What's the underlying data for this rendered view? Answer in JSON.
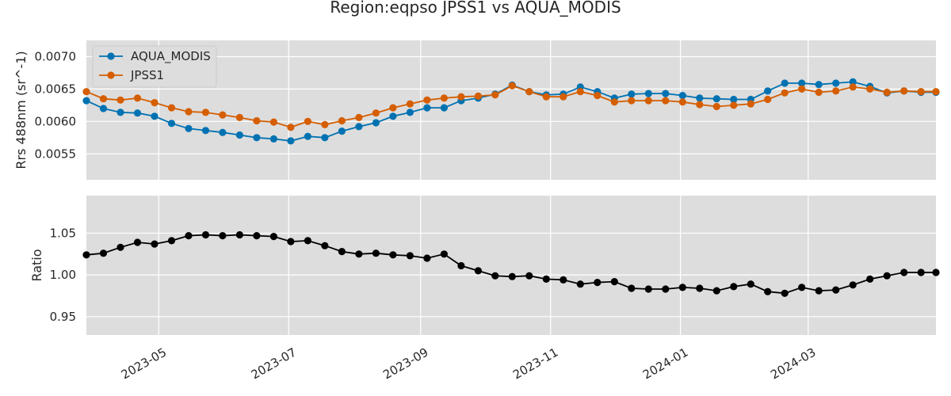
{
  "figure": {
    "title": "Region:eqpso JPSS1 vs AQUA_MODIS"
  },
  "colors": {
    "plot_background": "#dddddd",
    "grid": "#ffffff",
    "aqua_modis": "#0072b2",
    "jpss1": "#d55e00",
    "ratio": "#000000"
  },
  "chart_data": [
    {
      "type": "line",
      "title": "Region:eqpso JPSS1 vs AQUA_MODIS",
      "xlabel": "",
      "ylabel": "Rrs 488nm (sr^-1)",
      "x_type": "date",
      "xlim": [
        "2023-03-28",
        "2024-04-30"
      ],
      "ylim": [
        0.0051,
        0.00725
      ],
      "yticks": [
        0.0055,
        0.006,
        0.0065,
        0.007
      ],
      "ytick_labels": [
        "0.0055",
        "0.0060",
        "0.0065",
        "0.0070"
      ],
      "grid": true,
      "legend_position": "upper-left",
      "x": [
        "2023-03-28",
        "2023-04-05",
        "2023-04-13",
        "2023-04-21",
        "2023-04-29",
        "2023-05-07",
        "2023-05-15",
        "2023-05-23",
        "2023-05-31",
        "2023-06-08",
        "2023-06-16",
        "2023-06-24",
        "2023-07-02",
        "2023-07-10",
        "2023-07-18",
        "2023-07-26",
        "2023-08-03",
        "2023-08-11",
        "2023-08-19",
        "2023-08-27",
        "2023-09-04",
        "2023-09-12",
        "2023-09-20",
        "2023-09-28",
        "2023-10-06",
        "2023-10-14",
        "2023-10-22",
        "2023-10-30",
        "2023-11-07",
        "2023-11-15",
        "2023-11-23",
        "2023-12-01",
        "2023-12-09",
        "2023-12-17",
        "2023-12-25",
        "2024-01-02",
        "2024-01-10",
        "2024-01-18",
        "2024-01-26",
        "2024-02-03",
        "2024-02-11",
        "2024-02-19",
        "2024-02-27",
        "2024-03-06",
        "2024-03-14",
        "2024-03-22",
        "2024-03-30",
        "2024-04-07",
        "2024-04-15",
        "2024-04-23",
        "2024-04-30"
      ],
      "series": [
        {
          "name": "AQUA_MODIS",
          "color": "#0072b2",
          "values": [
            0.00632,
            0.0062,
            0.00614,
            0.00613,
            0.00608,
            0.00597,
            0.00589,
            0.00586,
            0.00583,
            0.00579,
            0.00575,
            0.00573,
            0.0057,
            0.00577,
            0.00575,
            0.00585,
            0.00592,
            0.00598,
            0.00608,
            0.00614,
            0.00621,
            0.00621,
            0.00632,
            0.00636,
            0.00642,
            0.00656,
            0.00646,
            0.00641,
            0.00642,
            0.00653,
            0.00646,
            0.00636,
            0.00642,
            0.00643,
            0.00643,
            0.0064,
            0.00636,
            0.00635,
            0.00634,
            0.00634,
            0.00647,
            0.00659,
            0.00659,
            0.00657,
            0.00659,
            0.00661,
            0.00654,
            0.00644,
            0.00647,
            0.00645,
            0.00645
          ]
        },
        {
          "name": "JPSS1",
          "color": "#d55e00",
          "values": [
            0.00646,
            0.00635,
            0.00633,
            0.00636,
            0.00629,
            0.00621,
            0.00615,
            0.00614,
            0.0061,
            0.00606,
            0.00601,
            0.00599,
            0.00591,
            0.006,
            0.00595,
            0.00601,
            0.00606,
            0.00613,
            0.00621,
            0.00627,
            0.00633,
            0.00636,
            0.00638,
            0.00639,
            0.00641,
            0.00655,
            0.00646,
            0.00638,
            0.00638,
            0.00646,
            0.0064,
            0.0063,
            0.00632,
            0.00632,
            0.00632,
            0.0063,
            0.00626,
            0.00623,
            0.00625,
            0.00627,
            0.00634,
            0.00644,
            0.0065,
            0.00645,
            0.00647,
            0.00653,
            0.0065,
            0.00645,
            0.00647,
            0.00646,
            0.00646
          ]
        }
      ]
    },
    {
      "type": "line",
      "xlabel": "",
      "ylabel": "Ratio",
      "x_type": "date",
      "xlim": [
        "2023-03-28",
        "2024-04-30"
      ],
      "ylim": [
        0.928,
        1.095
      ],
      "yticks": [
        0.95,
        1.0,
        1.05
      ],
      "ytick_labels": [
        "0.95",
        "1.00",
        "1.05"
      ],
      "xticks": [
        "2023-05-01",
        "2023-07-01",
        "2023-09-01",
        "2023-11-01",
        "2024-01-01",
        "2024-03-01"
      ],
      "xtick_labels": [
        "2023-05",
        "2023-07",
        "2023-09",
        "2023-11",
        "2024-01",
        "2024-03"
      ],
      "grid": true,
      "x": [
        "2023-03-28",
        "2023-04-05",
        "2023-04-13",
        "2023-04-21",
        "2023-04-29",
        "2023-05-07",
        "2023-05-15",
        "2023-05-23",
        "2023-05-31",
        "2023-06-08",
        "2023-06-16",
        "2023-06-24",
        "2023-07-02",
        "2023-07-10",
        "2023-07-18",
        "2023-07-26",
        "2023-08-03",
        "2023-08-11",
        "2023-08-19",
        "2023-08-27",
        "2023-09-04",
        "2023-09-12",
        "2023-09-20",
        "2023-09-28",
        "2023-10-06",
        "2023-10-14",
        "2023-10-22",
        "2023-10-30",
        "2023-11-07",
        "2023-11-15",
        "2023-11-23",
        "2023-12-01",
        "2023-12-09",
        "2023-12-17",
        "2023-12-25",
        "2024-01-02",
        "2024-01-10",
        "2024-01-18",
        "2024-01-26",
        "2024-02-03",
        "2024-02-11",
        "2024-02-19",
        "2024-02-27",
        "2024-03-06",
        "2024-03-14",
        "2024-03-22",
        "2024-03-30",
        "2024-04-07",
        "2024-04-15",
        "2024-04-23",
        "2024-04-30"
      ],
      "series": [
        {
          "color": "#000000",
          "values": [
            1.024,
            1.026,
            1.033,
            1.039,
            1.037,
            1.041,
            1.047,
            1.048,
            1.047,
            1.048,
            1.047,
            1.046,
            1.04,
            1.041,
            1.035,
            1.028,
            1.025,
            1.026,
            1.024,
            1.023,
            1.02,
            1.025,
            1.011,
            1.005,
            0.999,
            0.998,
            0.999,
            0.995,
            0.994,
            0.989,
            0.991,
            0.992,
            0.984,
            0.983,
            0.983,
            0.985,
            0.984,
            0.981,
            0.986,
            0.989,
            0.98,
            0.978,
            0.985,
            0.981,
            0.982,
            0.988,
            0.995,
            0.999,
            1.003,
            1.003,
            1.003
          ]
        }
      ]
    }
  ]
}
